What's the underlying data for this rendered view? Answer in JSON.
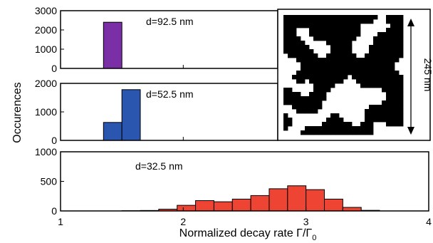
{
  "chart_data": [
    {
      "type": "bar",
      "annotation": "d=92.5 nm",
      "color": "#7b2fa6",
      "ylim": [
        0,
        3000
      ],
      "yticks": [
        "0",
        "1000",
        "2000",
        "3000"
      ],
      "bin_edges": [
        1.35,
        1.5
      ],
      "values": [
        2400
      ]
    },
    {
      "type": "bar",
      "annotation": "d=52.5 nm",
      "color": "#2a56b0",
      "ylim": [
        0,
        2000
      ],
      "yticks": [
        "0",
        "1000",
        "2000"
      ],
      "bin_edges": [
        1.35,
        1.5,
        1.65
      ],
      "values": [
        630,
        1780
      ]
    },
    {
      "type": "bar",
      "annotation": "d=32.5 nm",
      "color": "#ee4433",
      "ylim": [
        0,
        1000
      ],
      "yticks": [
        "0",
        "500",
        "1000"
      ],
      "bin_edges": [
        1.5,
        1.65,
        1.8,
        1.95,
        2.1,
        2.25,
        2.4,
        2.55,
        2.7,
        2.85,
        3.0,
        3.15,
        3.3,
        3.45,
        3.6
      ],
      "values": [
        4,
        8,
        30,
        95,
        175,
        155,
        200,
        260,
        375,
        425,
        360,
        200,
        60,
        10
      ]
    }
  ],
  "shared": {
    "xlim": [
      1,
      4
    ],
    "xticks": [
      "1",
      "2",
      "3",
      "4"
    ],
    "xlabel_main": "Normalized decay rate Γ/Γ",
    "xlabel_sub": "0",
    "ylabel": "Occurences"
  },
  "inset": {
    "scale_label": "245 nm",
    "colors": [
      "#000000",
      "#ffffff"
    ]
  }
}
